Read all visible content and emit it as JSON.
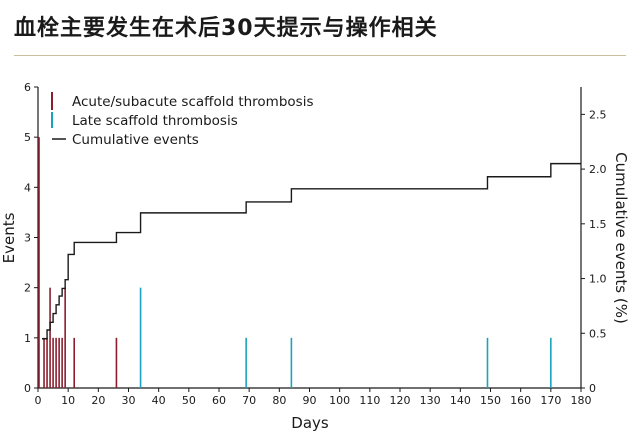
{
  "page": {
    "title": "血栓主要发生在术后30天提示与操作相关"
  },
  "chart_data": {
    "type": "bar",
    "xlabel": "Days",
    "ylabel": "Events",
    "y2label": "Cumulative events (%)",
    "xlim": [
      0,
      180
    ],
    "ylim": [
      0,
      6
    ],
    "y2lim": [
      0,
      2.75
    ],
    "x_ticks": [
      "0",
      "10",
      "20",
      "30",
      "40",
      "50",
      "60",
      "70",
      "80",
      "90",
      "100",
      "110",
      "120",
      "130",
      "140",
      "150",
      "160",
      "170",
      "180"
    ],
    "y_ticks": [
      "0",
      "1",
      "2",
      "3",
      "4",
      "5",
      "6"
    ],
    "y2_ticks": [
      "0",
      "0.5",
      "1.0",
      "1.5",
      "2.0",
      "2.5"
    ],
    "legend": {
      "position": "top-left",
      "items": [
        {
          "label": "Acute/subacute scaffold thrombosis",
          "color": "#8b1e2e"
        },
        {
          "label": "Late scaffold thrombosis",
          "color": "#1aa3bd"
        },
        {
          "label": "Cumulative events",
          "color": "#1a1a1a"
        }
      ]
    },
    "series": [
      {
        "name": "Acute/subacute scaffold thrombosis",
        "type": "bar",
        "color": "#8b1e2e",
        "x": [
          0,
          2,
          3,
          4,
          5,
          6,
          7,
          8,
          9,
          12,
          26
        ],
        "values": [
          5,
          1,
          1,
          2,
          1,
          1,
          1,
          1,
          2,
          1,
          1
        ]
      },
      {
        "name": "Late scaffold thrombosis",
        "type": "bar",
        "color": "#1aa3bd",
        "x": [
          34,
          69,
          84,
          149,
          170
        ],
        "values": [
          2,
          1,
          1,
          1,
          1
        ]
      },
      {
        "name": "Cumulative events",
        "type": "step",
        "axis": "right",
        "color": "#1a1a1a",
        "x": [
          0,
          2,
          3,
          4,
          5,
          6,
          7,
          8,
          9,
          10,
          12,
          26,
          34,
          69,
          84,
          149,
          170,
          180
        ],
        "values": [
          0.45,
          0.45,
          0.53,
          0.6,
          0.68,
          0.76,
          0.84,
          0.91,
          0.99,
          1.22,
          1.33,
          1.42,
          1.6,
          1.7,
          1.82,
          1.93,
          2.05,
          2.05
        ]
      }
    ]
  }
}
